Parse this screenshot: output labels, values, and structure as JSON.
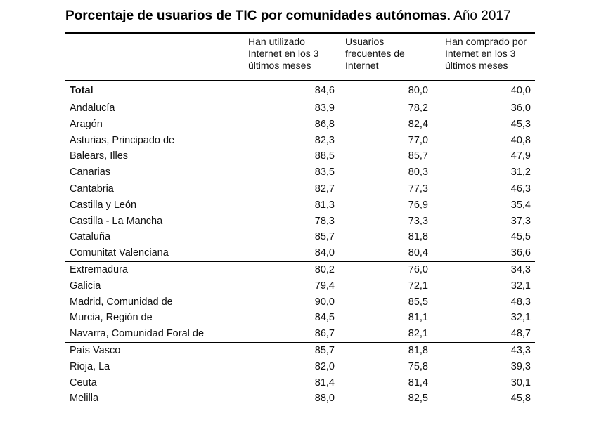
{
  "title": {
    "main": "Porcentaje de usuarios de TIC por comunidades autónomas.",
    "year": "Año 2017"
  },
  "columns": [
    "Han utilizado Internet en los 3 últimos meses",
    "Usuarios frecuentes de Internet",
    "Han comprado por Internet en los 3 últimos meses"
  ],
  "total": {
    "name": "Total",
    "values": [
      "84,6",
      "80,0",
      "40,0"
    ]
  },
  "groups": [
    [
      {
        "name": "Andalucía",
        "values": [
          "83,9",
          "78,2",
          "36,0"
        ]
      },
      {
        "name": "Aragón",
        "values": [
          "86,8",
          "82,4",
          "45,3"
        ]
      },
      {
        "name": "Asturias, Principado de",
        "values": [
          "82,3",
          "77,0",
          "40,8"
        ]
      },
      {
        "name": "Balears, Illes",
        "values": [
          "88,5",
          "85,7",
          "47,9"
        ]
      },
      {
        "name": "Canarias",
        "values": [
          "83,5",
          "80,3",
          "31,2"
        ]
      }
    ],
    [
      {
        "name": "Cantabria",
        "values": [
          "82,7",
          "77,3",
          "46,3"
        ]
      },
      {
        "name": "Castilla y León",
        "values": [
          "81,3",
          "76,9",
          "35,4"
        ]
      },
      {
        "name": "Castilla - La Mancha",
        "values": [
          "78,3",
          "73,3",
          "37,3"
        ]
      },
      {
        "name": "Cataluña",
        "values": [
          "85,7",
          "81,8",
          "45,5"
        ]
      },
      {
        "name": "Comunitat Valenciana",
        "values": [
          "84,0",
          "80,4",
          "36,6"
        ]
      }
    ],
    [
      {
        "name": "Extremadura",
        "values": [
          "80,2",
          "76,0",
          "34,3"
        ]
      },
      {
        "name": "Galicia",
        "values": [
          "79,4",
          "72,1",
          "32,1"
        ]
      },
      {
        "name": "Madrid, Comunidad de",
        "values": [
          "90,0",
          "85,5",
          "48,3"
        ]
      },
      {
        "name": "Murcia, Región de",
        "values": [
          "84,5",
          "81,1",
          "32,1"
        ]
      },
      {
        "name": "Navarra, Comunidad Foral de",
        "values": [
          "86,7",
          "82,1",
          "48,7"
        ]
      }
    ],
    [
      {
        "name": "País Vasco",
        "values": [
          "85,7",
          "81,8",
          "43,3"
        ]
      },
      {
        "name": "Rioja, La",
        "values": [
          "82,0",
          "75,8",
          "39,3"
        ]
      },
      {
        "name": "Ceuta",
        "values": [
          "81,4",
          "81,4",
          "30,1"
        ]
      },
      {
        "name": "Melilla",
        "values": [
          "88,0",
          "82,5",
          "45,8"
        ]
      }
    ]
  ]
}
